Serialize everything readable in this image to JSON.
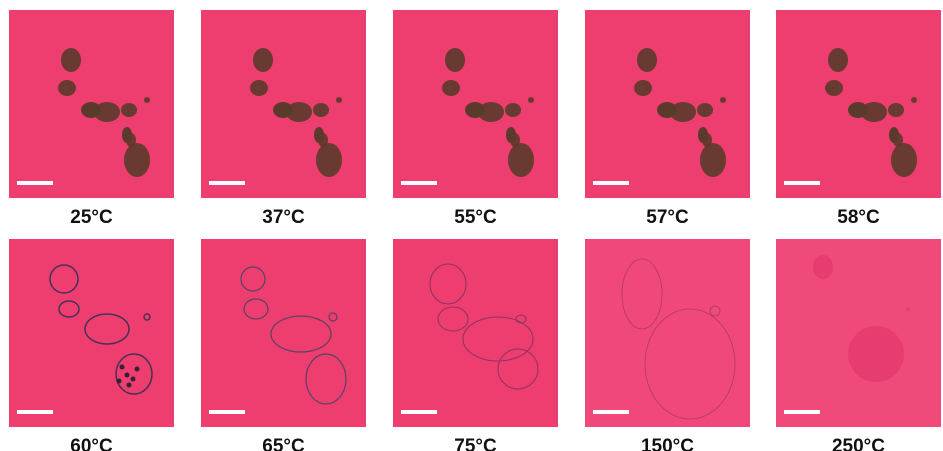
{
  "panels": [
    {
      "label": "25°C"
    },
    {
      "label": "37°C"
    },
    {
      "label": "55°C"
    },
    {
      "label": "57°C"
    },
    {
      "label": "58°C"
    },
    {
      "label": "60°C"
    },
    {
      "label": "65°C"
    },
    {
      "label": "75°C"
    },
    {
      "label": "150°C"
    },
    {
      "label": "250°C"
    }
  ]
}
